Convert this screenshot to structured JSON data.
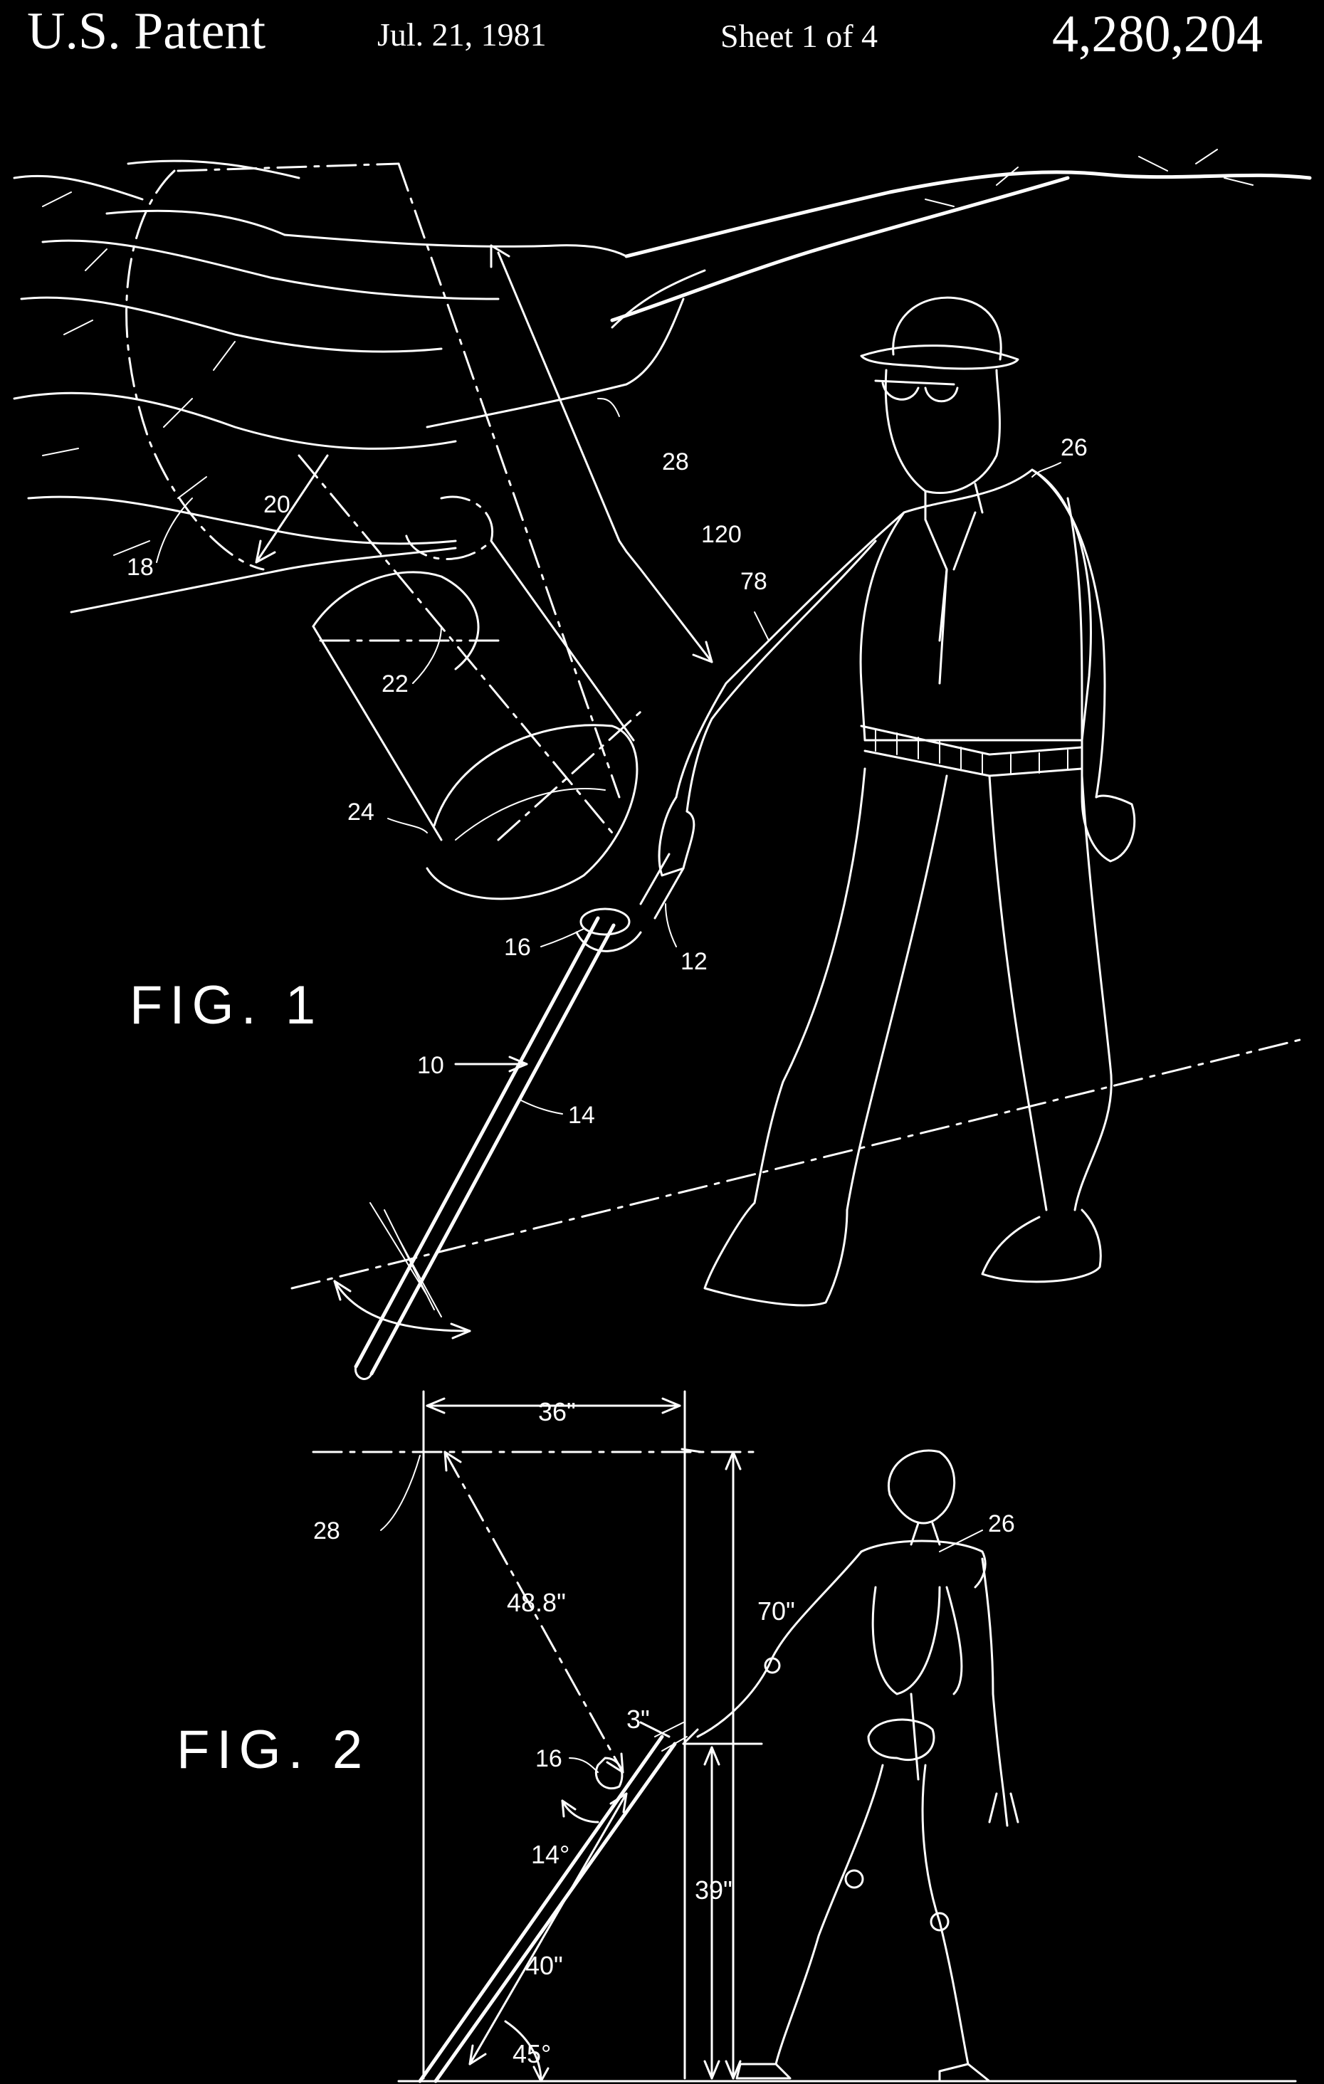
{
  "header": {
    "patent_label": "U.S. Patent",
    "date": "Jul. 21, 1981",
    "sheet": "Sheet 1 of 4",
    "patent_number": "4,280,204"
  },
  "figure1": {
    "label": "FIG. 1",
    "refs": {
      "r10": "10",
      "r12": "12",
      "r14": "14",
      "r16": "16",
      "r18": "18",
      "r20": "20",
      "r22": "22",
      "r24": "24",
      "r26": "26",
      "r28": "28",
      "r78": "78",
      "r120": "120"
    }
  },
  "figure2": {
    "label": "FIG. 2",
    "refs": {
      "r16": "16",
      "r26": "26",
      "r28": "28"
    },
    "dimensions": {
      "width_36": "36\"",
      "diag_48_8": "48.8\"",
      "height_70": "70\"",
      "offset_3": "3\"",
      "angle_14": "14°",
      "height_39": "39\"",
      "cane_40": "40\"",
      "angle_45": "45°"
    }
  }
}
